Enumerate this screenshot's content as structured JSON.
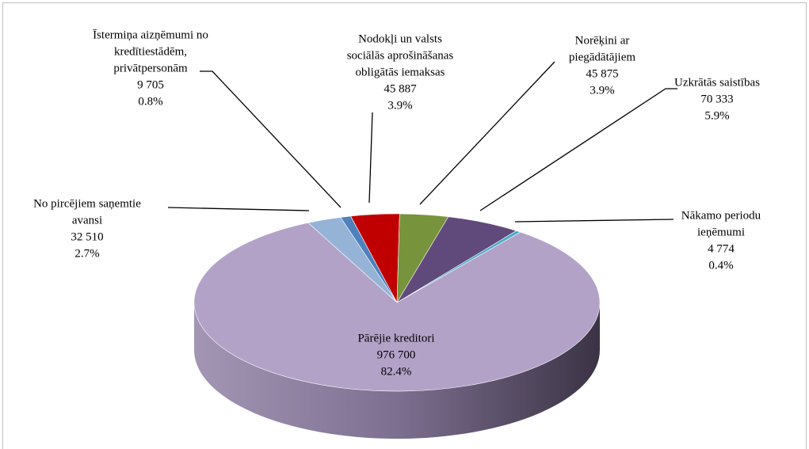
{
  "chart_data": {
    "type": "pie3d",
    "labels": [
      [
        "No pircējiem saņemtie",
        "avansi"
      ],
      [
        "Īstermiņa aizņēmumi no",
        "kredītiestādēm,",
        "privātpersonām"
      ],
      [
        "Nodokļi un valsts",
        "sociālās aprošināšanas",
        "obligātās iemaksas"
      ],
      [
        "Norēķini ar",
        "piegādātājiem"
      ],
      [
        "Uzkrātās  saistības"
      ],
      [
        "Nākamo periodu",
        "ieņēmumi"
      ],
      [
        "Pārējie kreditori"
      ]
    ],
    "values": [
      32510,
      9705,
      45887,
      45875,
      70333,
      4774,
      976700
    ],
    "value_labels": [
      "32 510",
      "9 705",
      "45 887",
      "45 875",
      "70 333",
      "4 774",
      "976 700"
    ],
    "percent_labels": [
      "2.7%",
      "0.8%",
      "3.9%",
      "3.9%",
      "5.9%",
      "0.4%",
      "82.4%"
    ],
    "colors": [
      "#95b3d7",
      "#4f81bd",
      "#c00000",
      "#77933c",
      "#604a7b",
      "#4bacc6",
      "#b3a2c7"
    ]
  }
}
